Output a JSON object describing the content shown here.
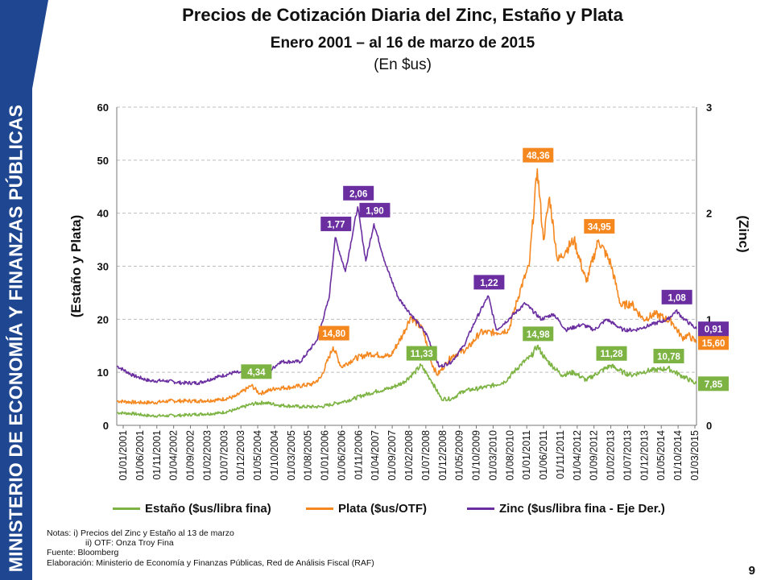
{
  "sidebar": {
    "text": "MINISTERIO DE ECONOMÍA Y FINANZAS PÚBLICAS"
  },
  "header": {
    "title": "Precios de Cotización Diaria del Zinc, Estaño y Plata",
    "subtitle": "Enero 2001 – al 16 de marzo de 2015",
    "unit": "(En $us)"
  },
  "legend": {
    "estano": "Estaño ($us/libra fina)",
    "plata": "Plata ($us/OTF)",
    "zinc": "Zinc ($us/libra fina - Eje Der.)"
  },
  "notes": [
    "Notas: i) Precios del Zinc y Estaño al 13 de marzo",
    "ii) OTF:  Onza Troy Fina",
    "Fuente: Bloomberg",
    "Elaboración: Ministerio de Economía y Finanzas Públicas, Red de Análisis Fiscal (RAF)"
  ],
  "page_number": "9",
  "chart_data": {
    "type": "line",
    "ylabel": "(Estaño y Plata)",
    "y2label": "(Zinc)",
    "ylim": [
      0,
      60
    ],
    "y2lim": [
      0,
      3
    ],
    "yticks": [
      "0",
      "10",
      "20",
      "30",
      "40",
      "50",
      "60"
    ],
    "y2ticks": [
      "0",
      "1",
      "2",
      "3"
    ],
    "grid": "horizontal dashed",
    "legend_position": "bottom",
    "x_labels": [
      "01/01/2001",
      "01/06/2001",
      "01/11/2001",
      "01/04/2002",
      "01/09/2002",
      "01/02/2003",
      "01/07/2003",
      "01/12/2003",
      "01/05/2004",
      "01/10/2004",
      "01/03/2005",
      "01/08/2005",
      "01/01/2006",
      "01/06/2006",
      "01/11/2006",
      "01/04/2007",
      "01/09/2007",
      "01/02/2008",
      "01/07/2008",
      "01/12/2008",
      "01/05/2009",
      "01/10/2009",
      "01/03/2010",
      "01/08/2010",
      "01/01/2011",
      "01/06/2011",
      "01/11/2011",
      "01/04/2012",
      "01/09/2012",
      "01/02/2013",
      "01/07/2013",
      "01/12/2013",
      "01/05/2014",
      "01/10/2014",
      "01/03/2015"
    ],
    "x_start": 2001.0,
    "x_end": 2015.2,
    "colors": {
      "estano": "#7cb342",
      "plata": "#f5871f",
      "zinc": "#6a2ea0"
    },
    "series": [
      {
        "name": "Estaño ($us/libra fina)",
        "key": "estano",
        "axis": "left",
        "points": [
          [
            2001.0,
            2.4
          ],
          [
            2001.4,
            2.2
          ],
          [
            2001.8,
            1.8
          ],
          [
            2002.2,
            1.8
          ],
          [
            2002.6,
            1.9
          ],
          [
            2003.0,
            2.1
          ],
          [
            2003.5,
            2.3
          ],
          [
            2003.9,
            2.9
          ],
          [
            2004.3,
            4.0
          ],
          [
            2004.6,
            4.3
          ],
          [
            2005.0,
            3.8
          ],
          [
            2005.5,
            3.5
          ],
          [
            2006.0,
            3.5
          ],
          [
            2006.4,
            4.2
          ],
          [
            2006.8,
            5.0
          ],
          [
            2007.0,
            5.6
          ],
          [
            2007.4,
            6.5
          ],
          [
            2007.7,
            7.0
          ],
          [
            2008.0,
            8.0
          ],
          [
            2008.3,
            10.0
          ],
          [
            2008.45,
            11.3
          ],
          [
            2008.7,
            8.5
          ],
          [
            2008.95,
            5.0
          ],
          [
            2009.2,
            5.0
          ],
          [
            2009.5,
            6.5
          ],
          [
            2009.9,
            7.0
          ],
          [
            2010.2,
            7.5
          ],
          [
            2010.5,
            8.2
          ],
          [
            2010.9,
            11.5
          ],
          [
            2011.15,
            13.0
          ],
          [
            2011.3,
            14.98
          ],
          [
            2011.5,
            12.5
          ],
          [
            2011.9,
            9.5
          ],
          [
            2012.2,
            10.0
          ],
          [
            2012.5,
            8.5
          ],
          [
            2012.8,
            10.0
          ],
          [
            2013.1,
            11.28
          ],
          [
            2013.4,
            10.0
          ],
          [
            2013.6,
            9.5
          ],
          [
            2014.0,
            10.3
          ],
          [
            2014.3,
            10.5
          ],
          [
            2014.5,
            10.78
          ],
          [
            2014.8,
            9.5
          ],
          [
            2015.2,
            7.85
          ]
        ],
        "callouts": [
          [
            2004.4,
            "4,34"
          ],
          [
            2008.45,
            "11,33"
          ],
          [
            2011.3,
            "14,98"
          ],
          [
            2013.1,
            "11,28"
          ],
          [
            2014.5,
            "10,78"
          ],
          [
            2015.2,
            "7,85"
          ]
        ]
      },
      {
        "name": "Plata ($us/OTF)",
        "key": "plata",
        "axis": "left",
        "points": [
          [
            2001.0,
            4.6
          ],
          [
            2001.5,
            4.3
          ],
          [
            2001.9,
            4.3
          ],
          [
            2002.3,
            4.6
          ],
          [
            2002.7,
            4.6
          ],
          [
            2003.0,
            4.6
          ],
          [
            2003.5,
            4.8
          ],
          [
            2003.9,
            5.4
          ],
          [
            2004.3,
            7.5
          ],
          [
            2004.5,
            6.0
          ],
          [
            2004.9,
            7.0
          ],
          [
            2005.3,
            7.2
          ],
          [
            2005.8,
            7.8
          ],
          [
            2006.0,
            9.0
          ],
          [
            2006.3,
            14.8
          ],
          [
            2006.5,
            11.0
          ],
          [
            2006.8,
            12.5
          ],
          [
            2007.2,
            13.5
          ],
          [
            2007.7,
            13.0
          ],
          [
            2008.0,
            17.0
          ],
          [
            2008.2,
            20.5
          ],
          [
            2008.5,
            18.0
          ],
          [
            2008.7,
            12.0
          ],
          [
            2008.85,
            9.5
          ],
          [
            2009.2,
            13.0
          ],
          [
            2009.6,
            14.5
          ],
          [
            2009.9,
            17.5
          ],
          [
            2010.3,
            17.5
          ],
          [
            2010.6,
            18.0
          ],
          [
            2010.9,
            26.0
          ],
          [
            2011.1,
            30.0
          ],
          [
            2011.3,
            48.36
          ],
          [
            2011.45,
            35.0
          ],
          [
            2011.6,
            43.0
          ],
          [
            2011.8,
            31.0
          ],
          [
            2012.0,
            33.0
          ],
          [
            2012.2,
            35.0
          ],
          [
            2012.5,
            27.0
          ],
          [
            2012.8,
            34.95
          ],
          [
            2013.1,
            30.5
          ],
          [
            2013.35,
            22.5
          ],
          [
            2013.6,
            23.0
          ],
          [
            2013.9,
            20.0
          ],
          [
            2014.2,
            21.0
          ],
          [
            2014.6,
            19.5
          ],
          [
            2014.85,
            16.5
          ],
          [
            2015.0,
            17.0
          ],
          [
            2015.2,
            15.6
          ]
        ],
        "callouts": [
          [
            2006.3,
            "14,80"
          ],
          [
            2011.3,
            "48,36"
          ],
          [
            2012.8,
            "34,95"
          ],
          [
            2015.2,
            "15,60"
          ]
        ]
      },
      {
        "name": "Zinc ($us/libra fina - Eje Der.)",
        "key": "zinc",
        "axis": "right",
        "points": [
          [
            2001.0,
            0.56
          ],
          [
            2001.4,
            0.47
          ],
          [
            2001.8,
            0.42
          ],
          [
            2002.2,
            0.42
          ],
          [
            2002.6,
            0.4
          ],
          [
            2003.0,
            0.4
          ],
          [
            2003.5,
            0.46
          ],
          [
            2003.9,
            0.5
          ],
          [
            2004.3,
            0.48
          ],
          [
            2004.6,
            0.46
          ],
          [
            2005.0,
            0.6
          ],
          [
            2005.5,
            0.6
          ],
          [
            2005.9,
            0.8
          ],
          [
            2006.2,
            1.2
          ],
          [
            2006.35,
            1.77
          ],
          [
            2006.6,
            1.45
          ],
          [
            2006.9,
            2.06
          ],
          [
            2007.1,
            1.55
          ],
          [
            2007.3,
            1.9
          ],
          [
            2007.6,
            1.5
          ],
          [
            2007.9,
            1.2
          ],
          [
            2008.3,
            1.0
          ],
          [
            2008.6,
            0.85
          ],
          [
            2008.9,
            0.55
          ],
          [
            2009.2,
            0.6
          ],
          [
            2009.5,
            0.75
          ],
          [
            2009.8,
            1.0
          ],
          [
            2010.1,
            1.22
          ],
          [
            2010.3,
            0.9
          ],
          [
            2010.6,
            1.0
          ],
          [
            2011.0,
            1.15
          ],
          [
            2011.4,
            1.0
          ],
          [
            2011.7,
            1.05
          ],
          [
            2012.0,
            0.9
          ],
          [
            2012.4,
            0.95
          ],
          [
            2012.7,
            0.9
          ],
          [
            2013.0,
            1.0
          ],
          [
            2013.4,
            0.9
          ],
          [
            2013.7,
            0.9
          ],
          [
            2014.1,
            0.95
          ],
          [
            2014.5,
            1.0
          ],
          [
            2014.7,
            1.08
          ],
          [
            2014.9,
            1.0
          ],
          [
            2015.2,
            0.91
          ]
        ],
        "callouts": [
          [
            2006.35,
            "1,77"
          ],
          [
            2006.9,
            "2,06"
          ],
          [
            2007.3,
            "1,90"
          ],
          [
            2010.1,
            "1,22"
          ],
          [
            2014.7,
            "1,08"
          ],
          [
            2015.2,
            "0,91"
          ]
        ]
      }
    ]
  }
}
